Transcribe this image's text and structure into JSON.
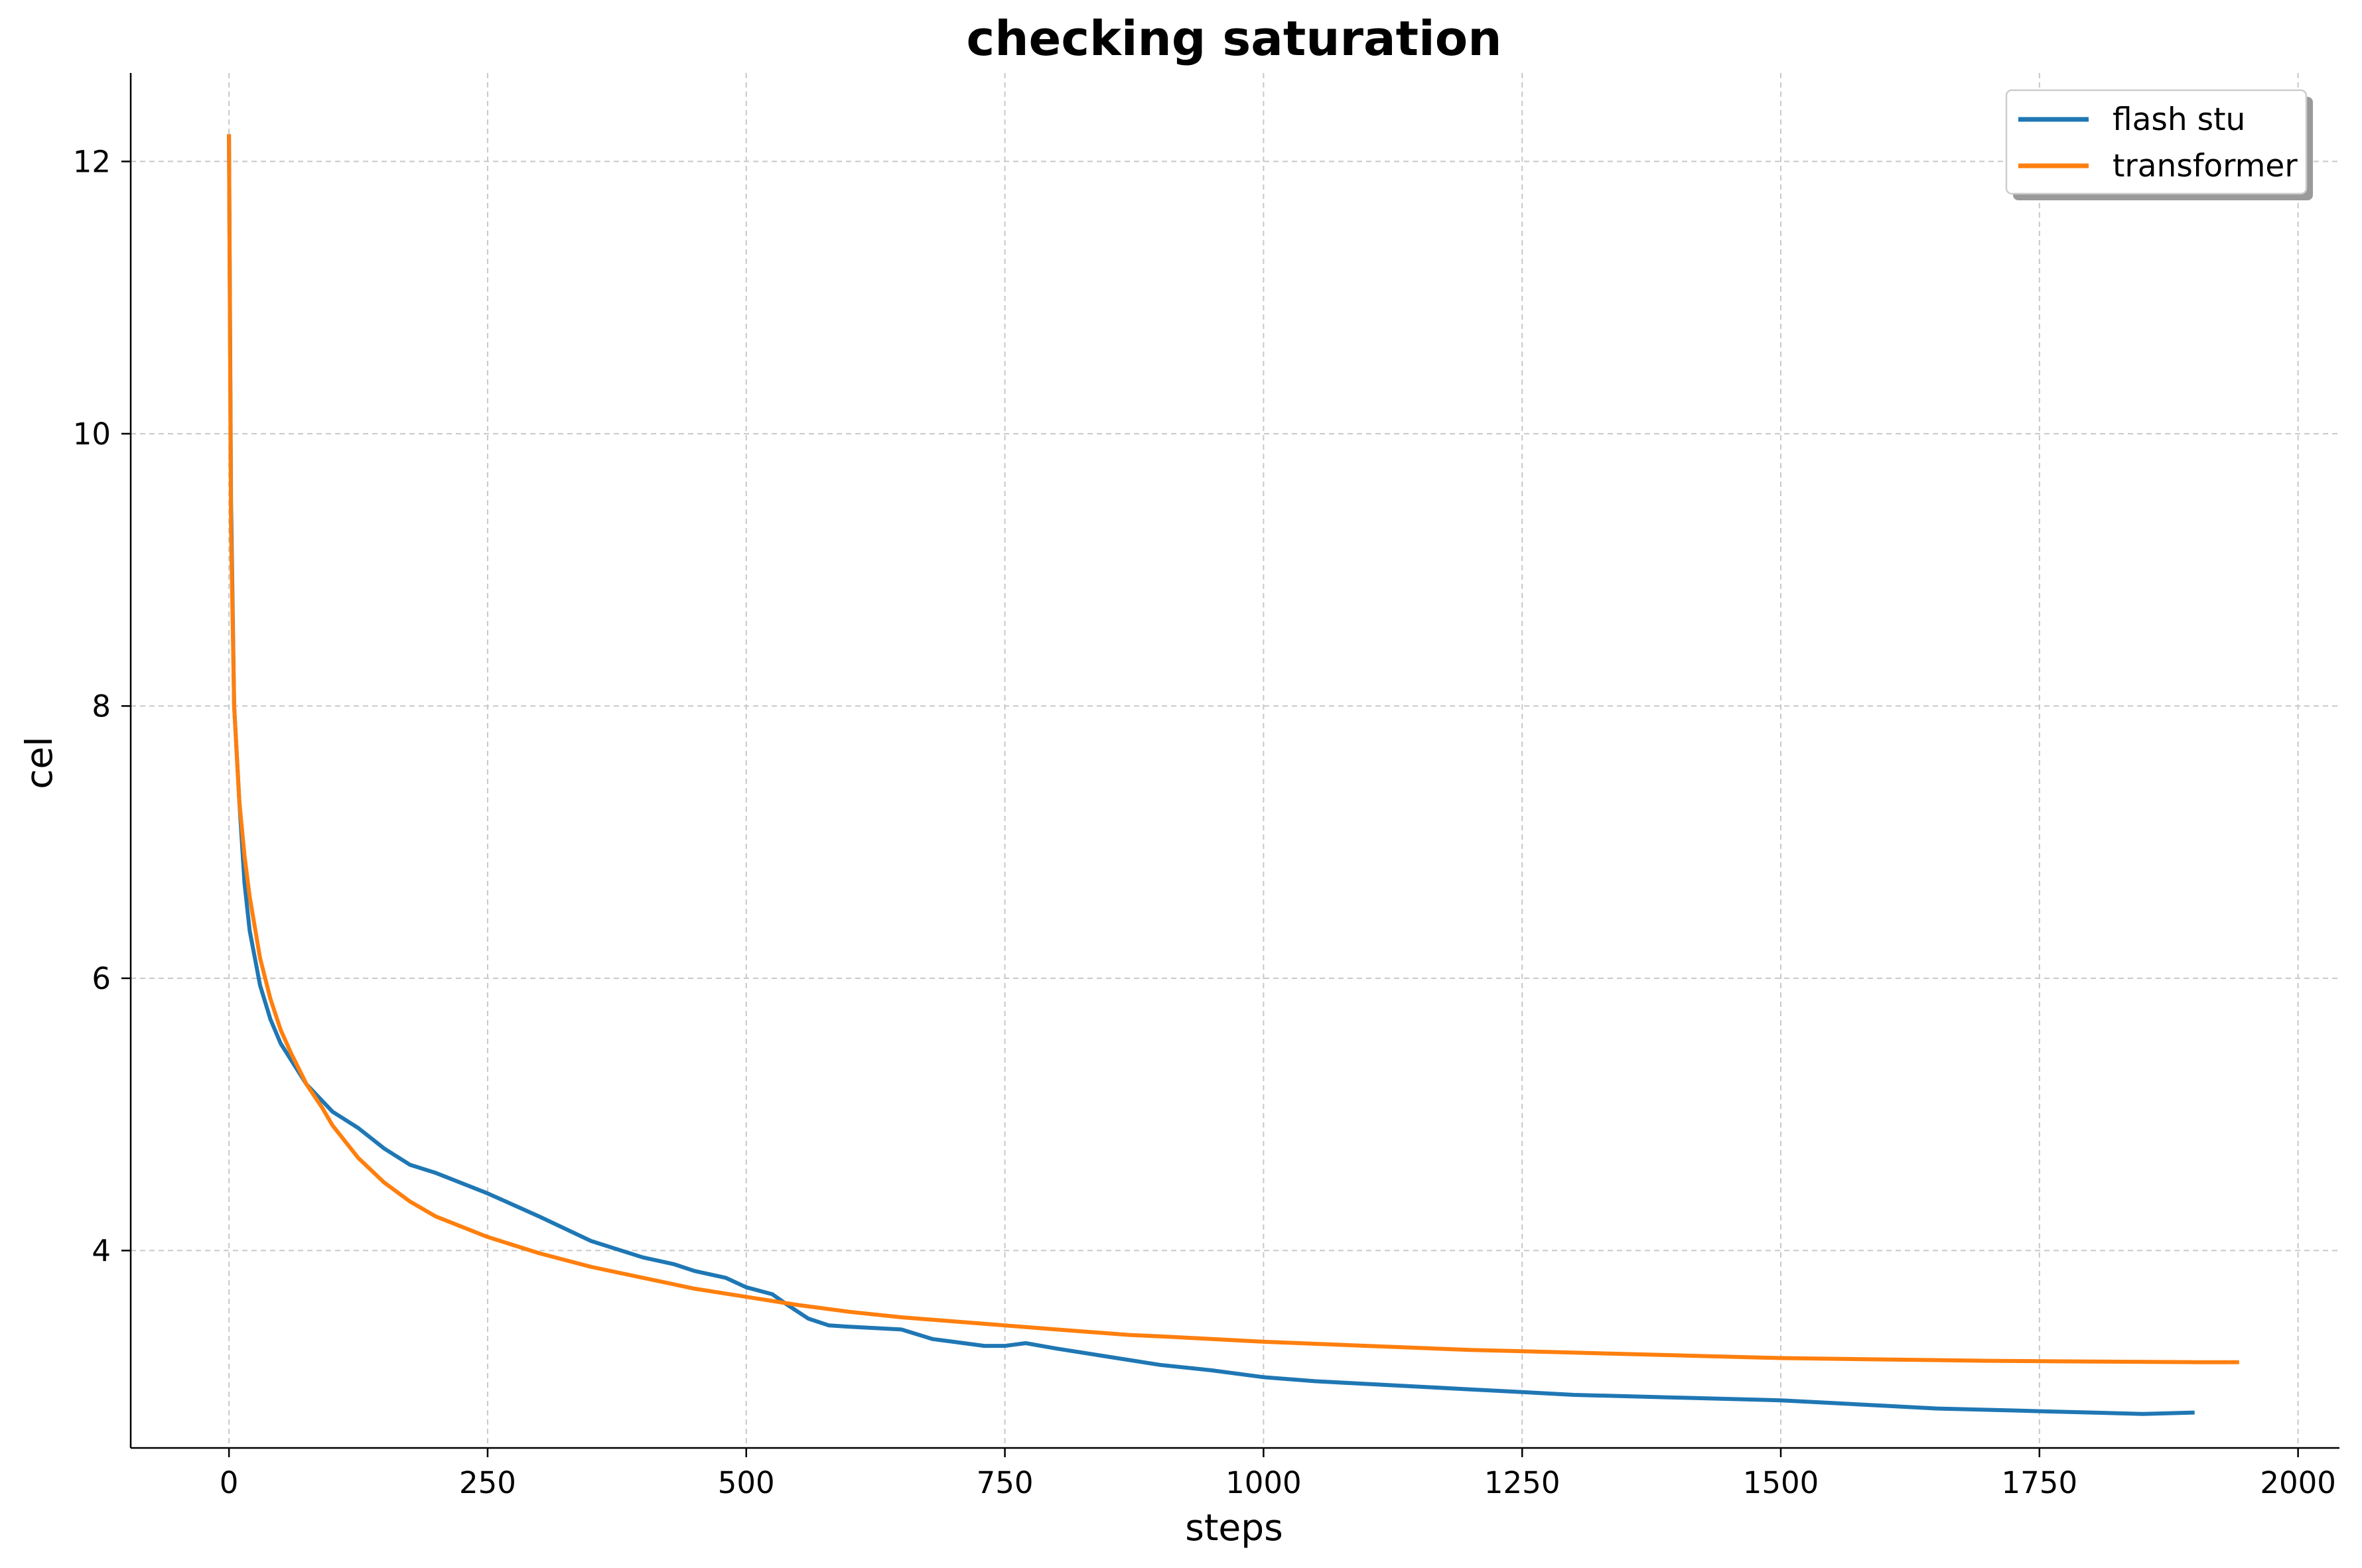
{
  "chart_data": {
    "type": "line",
    "title": "checking saturation",
    "xlabel": "steps",
    "ylabel": "cel",
    "xlim": [
      -95,
      2040
    ],
    "ylim": [
      2.55,
      12.65
    ],
    "xticks": [
      0,
      250,
      500,
      750,
      1000,
      1250,
      1500,
      1750,
      2000
    ],
    "yticks": [
      4,
      6,
      8,
      10,
      12
    ],
    "grid": true,
    "legend_position": "top-right",
    "series": [
      {
        "name": "flash stu",
        "color": "#1f77b4",
        "x": [
          0,
          2,
          5,
          10,
          15,
          20,
          30,
          40,
          50,
          60,
          75,
          90,
          100,
          125,
          150,
          175,
          200,
          250,
          300,
          350,
          400,
          430,
          450,
          480,
          500,
          525,
          540,
          560,
          580,
          600,
          650,
          680,
          700,
          730,
          750,
          770,
          800,
          850,
          900,
          950,
          1000,
          1050,
          1100,
          1150,
          1200,
          1250,
          1300,
          1350,
          1400,
          1450,
          1500,
          1550,
          1600,
          1650,
          1700,
          1750,
          1800,
          1850,
          1900
        ],
        "y": [
          12.2,
          9.5,
          8.0,
          7.3,
          6.7,
          6.35,
          5.95,
          5.7,
          5.52,
          5.4,
          5.22,
          5.1,
          5.02,
          4.9,
          4.75,
          4.63,
          4.57,
          4.42,
          4.25,
          4.07,
          3.95,
          3.9,
          3.85,
          3.8,
          3.73,
          3.68,
          3.6,
          3.5,
          3.45,
          3.44,
          3.42,
          3.35,
          3.33,
          3.3,
          3.3,
          3.32,
          3.28,
          3.22,
          3.16,
          3.12,
          3.07,
          3.04,
          3.02,
          3.0,
          2.98,
          2.96,
          2.94,
          2.93,
          2.92,
          2.91,
          2.9,
          2.88,
          2.86,
          2.84,
          2.83,
          2.82,
          2.81,
          2.8,
          2.81
        ]
      },
      {
        "name": "transformer",
        "color": "#ff7f0e",
        "x": [
          0,
          2,
          5,
          10,
          15,
          20,
          30,
          40,
          50,
          60,
          75,
          90,
          100,
          125,
          150,
          175,
          200,
          250,
          300,
          350,
          400,
          450,
          500,
          550,
          600,
          650,
          700,
          750,
          800,
          870,
          900,
          950,
          1000,
          1100,
          1200,
          1300,
          1400,
          1500,
          1600,
          1700,
          1800,
          1900,
          1943
        ],
        "y": [
          12.2,
          9.3,
          8.0,
          7.3,
          6.9,
          6.6,
          6.15,
          5.85,
          5.62,
          5.45,
          5.22,
          5.05,
          4.92,
          4.68,
          4.5,
          4.36,
          4.25,
          4.1,
          3.98,
          3.88,
          3.8,
          3.72,
          3.66,
          3.6,
          3.55,
          3.51,
          3.48,
          3.45,
          3.42,
          3.38,
          3.37,
          3.35,
          3.33,
          3.3,
          3.27,
          3.25,
          3.23,
          3.21,
          3.2,
          3.19,
          3.185,
          3.18,
          3.18
        ]
      }
    ]
  }
}
